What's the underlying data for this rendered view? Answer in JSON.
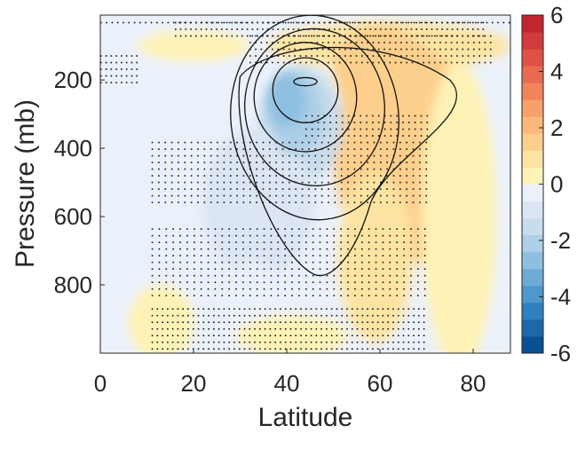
{
  "chart_data": {
    "type": "heatmap",
    "title": "",
    "xlabel": "Latitude",
    "ylabel": "Pressure (mb)",
    "xlim": [
      0,
      88
    ],
    "ylim": [
      1000,
      10
    ],
    "y_reversed": true,
    "xticks": [
      0,
      20,
      40,
      60,
      80
    ],
    "yticks": [
      200,
      400,
      600,
      800
    ],
    "colorbar": {
      "min": -6,
      "max": 6,
      "ticks": [
        -6,
        -4,
        -2,
        0,
        2,
        4,
        6
      ],
      "colors": [
        "#0a4f93",
        "#1d68ad",
        "#2f81bf",
        "#4d98cc",
        "#6dabd6",
        "#8ebfe0",
        "#adcfe7",
        "#c8dcec",
        "#dbe5f3",
        "#ebf1fb",
        "#fff2b6",
        "#fee4a2",
        "#fdcf8c",
        "#fcb87a",
        "#f8a06a",
        "#f1845b",
        "#e86a4f",
        "#df5145",
        "#d23a3b",
        "#c22430"
      ]
    },
    "contour_levels": [
      2,
      4,
      6,
      8,
      10,
      12
    ],
    "anomaly_regions": [
      {
        "name": "stratospheric-warm-west",
        "cx": 20,
        "cy": 100,
        "rx": 12,
        "ry": 45,
        "value": 0.6
      },
      {
        "name": "stratospheric-warm-band",
        "cx": 62,
        "cy": 100,
        "rx": 26,
        "ry": 70,
        "value": 1.1
      },
      {
        "name": "high-lat-warm-column",
        "cx": 66,
        "cy": 420,
        "rx": 16,
        "ry": 320,
        "value": 1.2
      },
      {
        "name": "polar-warm-column",
        "cx": 77,
        "cy": 600,
        "rx": 8,
        "ry": 450,
        "value": 0.5
      },
      {
        "name": "mid-lat-warm-lower",
        "cx": 59,
        "cy": 720,
        "rx": 8,
        "ry": 250,
        "value": 0.8
      },
      {
        "name": "mid-lat-cold-core",
        "cx": 43,
        "cy": 330,
        "rx": 9,
        "ry": 170,
        "value": -1.8
      },
      {
        "name": "mid-lat-cold-tail",
        "cx": 34,
        "cy": 560,
        "rx": 12,
        "ry": 220,
        "value": -0.9
      },
      {
        "name": "tropical-cold-upper",
        "cx": 3,
        "cy": 230,
        "rx": 8,
        "ry": 120,
        "value": -0.4
      },
      {
        "name": "subtropical-warm-surface",
        "cx": 13,
        "cy": 910,
        "rx": 7,
        "ry": 110,
        "value": 0.4
      },
      {
        "name": "cold-surface-column",
        "cx": 33,
        "cy": 880,
        "rx": 7,
        "ry": 150,
        "value": -0.5
      },
      {
        "name": "warm-surface-center",
        "cx": 41,
        "cy": 950,
        "rx": 12,
        "ry": 60,
        "value": 0.4
      }
    ]
  }
}
